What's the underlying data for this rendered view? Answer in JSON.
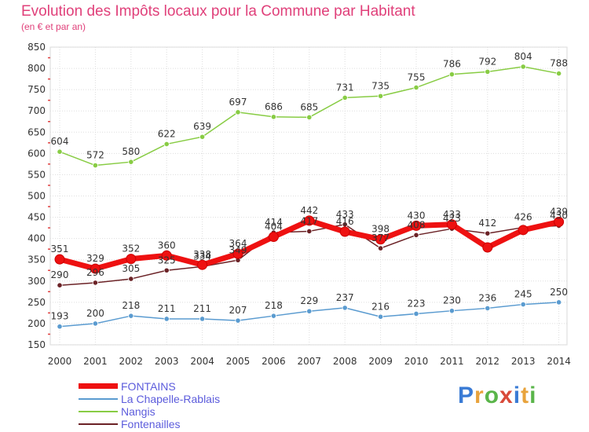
{
  "title": "Evolution des Impôts locaux pour la Commune par Habitant",
  "subtitle": "(en € et par an)",
  "logo_text": [
    "P",
    "r",
    "o",
    "x",
    "i",
    "t",
    "i"
  ],
  "logo_colors": [
    "#3a7bd5",
    "#e8a33c",
    "#5ab54a",
    "#d94a3a",
    "#3a7bd5",
    "#e8a33c",
    "#5ab54a"
  ],
  "chart_data": {
    "type": "line",
    "title": "Evolution des Impôts locaux pour la Commune par Habitant",
    "ylabel": "(en € et par an)",
    "xlabel": "",
    "ylim": [
      150,
      850
    ],
    "y_ticks": [
      150,
      200,
      250,
      300,
      350,
      400,
      450,
      500,
      550,
      600,
      650,
      700,
      750,
      800,
      850
    ],
    "categories": [
      "2000",
      "2001",
      "2002",
      "2003",
      "2004",
      "2005",
      "2006",
      "2007",
      "2008",
      "2009",
      "2010",
      "2011",
      "2012",
      "2013",
      "2014"
    ],
    "series": [
      {
        "name": "FONTAINS",
        "color": "#ee1111",
        "width": 7,
        "values": [
          351,
          329,
          352,
          360,
          338,
          364,
          404,
          442,
          416,
          398,
          430,
          433,
          379,
          420,
          439
        ],
        "labels": [
          "351",
          "329",
          "352",
          "360",
          "338",
          "364",
          "404",
          "442",
          "416",
          "398",
          "430",
          "433",
          "",
          "",
          "439"
        ]
      },
      {
        "name": "La Chapelle-Rablais",
        "color": "#5a9bd0",
        "width": 1.5,
        "values": [
          193,
          200,
          218,
          211,
          211,
          207,
          218,
          229,
          237,
          216,
          223,
          230,
          236,
          245,
          250
        ],
        "labels": [
          "193",
          "200",
          "218",
          "211",
          "211",
          "207",
          "218",
          "229",
          "237",
          "216",
          "223",
          "230",
          "236",
          "245",
          "250"
        ]
      },
      {
        "name": "Nangis",
        "color": "#88cc44",
        "width": 1.5,
        "values": [
          604,
          572,
          580,
          622,
          639,
          697,
          686,
          685,
          731,
          735,
          755,
          786,
          792,
          804,
          788
        ],
        "labels": [
          "604",
          "572",
          "580",
          "622",
          "639",
          "697",
          "686",
          "685",
          "731",
          "735",
          "755",
          "786",
          "792",
          "804",
          "788"
        ]
      },
      {
        "name": "Fontenailles",
        "color": "#6b2226",
        "width": 1.5,
        "values": [
          290,
          296,
          305,
          325,
          334,
          349,
          414,
          417,
          433,
          377,
          408,
          423,
          412,
          426,
          430
        ],
        "labels": [
          "290",
          "296",
          "305",
          "325",
          "334",
          "349",
          "414",
          "417",
          "433",
          "377",
          "408",
          "423",
          "412",
          "426",
          "430"
        ]
      }
    ],
    "legend": [
      "FONTAINS",
      "La Chapelle-Rablais",
      "Nangis",
      "Fontenailles"
    ]
  }
}
